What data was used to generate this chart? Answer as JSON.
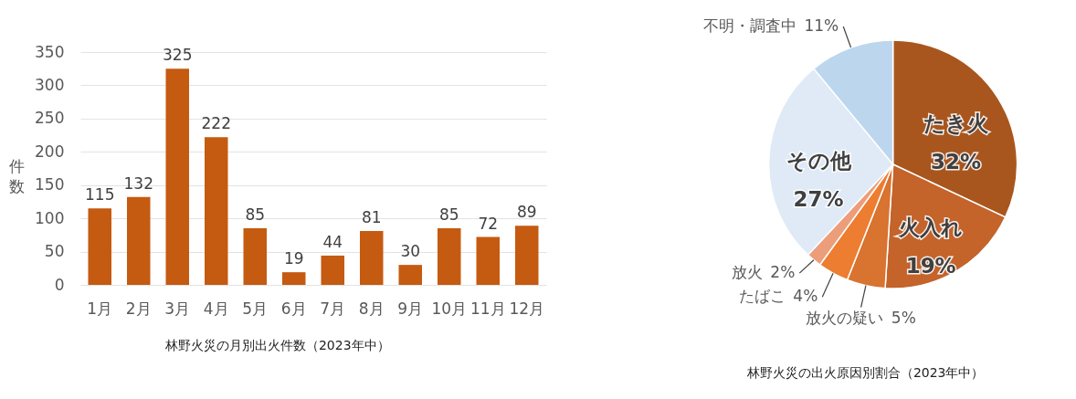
{
  "chart_data": [
    {
      "type": "bar",
      "title": "林野火災の月別出火件数（2023年中）",
      "ylabel": "件数",
      "categories": [
        "1月",
        "2月",
        "3月",
        "4月",
        "5月",
        "6月",
        "7月",
        "8月",
        "9月",
        "10月",
        "11月",
        "12月"
      ],
      "values": [
        115,
        132,
        325,
        222,
        85,
        19,
        44,
        81,
        30,
        85,
        72,
        89
      ],
      "color": "#c55a11",
      "ylim": [
        0,
        350
      ],
      "yticks": [
        0,
        50,
        100,
        150,
        200,
        250,
        300,
        350
      ],
      "grid": "y",
      "data_labels": true
    },
    {
      "type": "pie",
      "title": "林野火災の出火原因別割合（2023年中）",
      "categories": [
        "たき火",
        "火入れ",
        "放火の疑い",
        "たばこ",
        "放火",
        "その他",
        "不明・調査中"
      ],
      "values": [
        32,
        19,
        5,
        4,
        2,
        27,
        11
      ],
      "colors": [
        "#a9561e",
        "#c4632a",
        "#d87330",
        "#ed7d31",
        "#ec9d7a",
        "#dfeaf6",
        "#bcd6ee"
      ],
      "value_labels": [
        "32%",
        "19%",
        "5%",
        "4%",
        "2%",
        "27%",
        "11%"
      ]
    }
  ]
}
